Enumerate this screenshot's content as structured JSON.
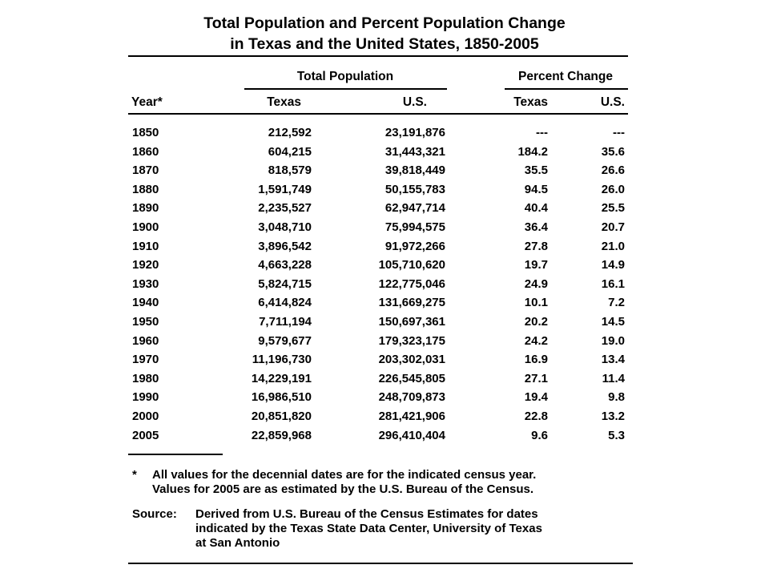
{
  "title": {
    "line1": "Total Population and Percent Population Change",
    "line2": "in Texas and the United States, 1850-2005"
  },
  "headers": {
    "group_total": "Total Population",
    "group_percent": "Percent Change",
    "year": "Year*",
    "total_texas": "Texas",
    "total_us": "U.S.",
    "pct_texas": "Texas",
    "pct_us": "U.S."
  },
  "rows": [
    {
      "year": "1850",
      "texas": "212,592",
      "us": "23,191,876",
      "pct_texas": "---",
      "pct_us": "---"
    },
    {
      "year": "1860",
      "texas": "604,215",
      "us": "31,443,321",
      "pct_texas": "184.2",
      "pct_us": "35.6"
    },
    {
      "year": "1870",
      "texas": "818,579",
      "us": "39,818,449",
      "pct_texas": "35.5",
      "pct_us": "26.6"
    },
    {
      "year": "1880",
      "texas": "1,591,749",
      "us": "50,155,783",
      "pct_texas": "94.5",
      "pct_us": "26.0"
    },
    {
      "year": "1890",
      "texas": "2,235,527",
      "us": "62,947,714",
      "pct_texas": "40.4",
      "pct_us": "25.5"
    },
    {
      "year": "1900",
      "texas": "3,048,710",
      "us": "75,994,575",
      "pct_texas": "36.4",
      "pct_us": "20.7"
    },
    {
      "year": "1910",
      "texas": "3,896,542",
      "us": "91,972,266",
      "pct_texas": "27.8",
      "pct_us": "21.0"
    },
    {
      "year": "1920",
      "texas": "4,663,228",
      "us": "105,710,620",
      "pct_texas": "19.7",
      "pct_us": "14.9"
    },
    {
      "year": "1930",
      "texas": "5,824,715",
      "us": "122,775,046",
      "pct_texas": "24.9",
      "pct_us": "16.1"
    },
    {
      "year": "1940",
      "texas": "6,414,824",
      "us": "131,669,275",
      "pct_texas": "10.1",
      "pct_us": "7.2"
    },
    {
      "year": "1950",
      "texas": "7,711,194",
      "us": "150,697,361",
      "pct_texas": "20.2",
      "pct_us": "14.5"
    },
    {
      "year": "1960",
      "texas": "9,579,677",
      "us": "179,323,175",
      "pct_texas": "24.2",
      "pct_us": "19.0"
    },
    {
      "year": "1970",
      "texas": "11,196,730",
      "us": "203,302,031",
      "pct_texas": "16.9",
      "pct_us": "13.4"
    },
    {
      "year": "1980",
      "texas": "14,229,191",
      "us": "226,545,805",
      "pct_texas": "27.1",
      "pct_us": "11.4"
    },
    {
      "year": "1990",
      "texas": "16,986,510",
      "us": "248,709,873",
      "pct_texas": "19.4",
      "pct_us": "9.8"
    },
    {
      "year": "2000",
      "texas": "20,851,820",
      "us": "281,421,906",
      "pct_texas": "22.8",
      "pct_us": "13.2"
    },
    {
      "year": "2005",
      "texas": "22,859,968",
      "us": "296,410,404",
      "pct_texas": "9.6",
      "pct_us": "5.3"
    }
  ],
  "footnote": {
    "marker": "*",
    "line1": "All values for the decennial dates are for the indicated census year.",
    "line2": "Values for 2005 are as estimated by the U.S. Bureau of the Census."
  },
  "source": {
    "label": "Source:",
    "line1": "Derived from U.S. Bureau of the Census Estimates for dates",
    "line2": "indicated by the Texas State Data Center, University of Texas",
    "line3": "at San Antonio"
  }
}
